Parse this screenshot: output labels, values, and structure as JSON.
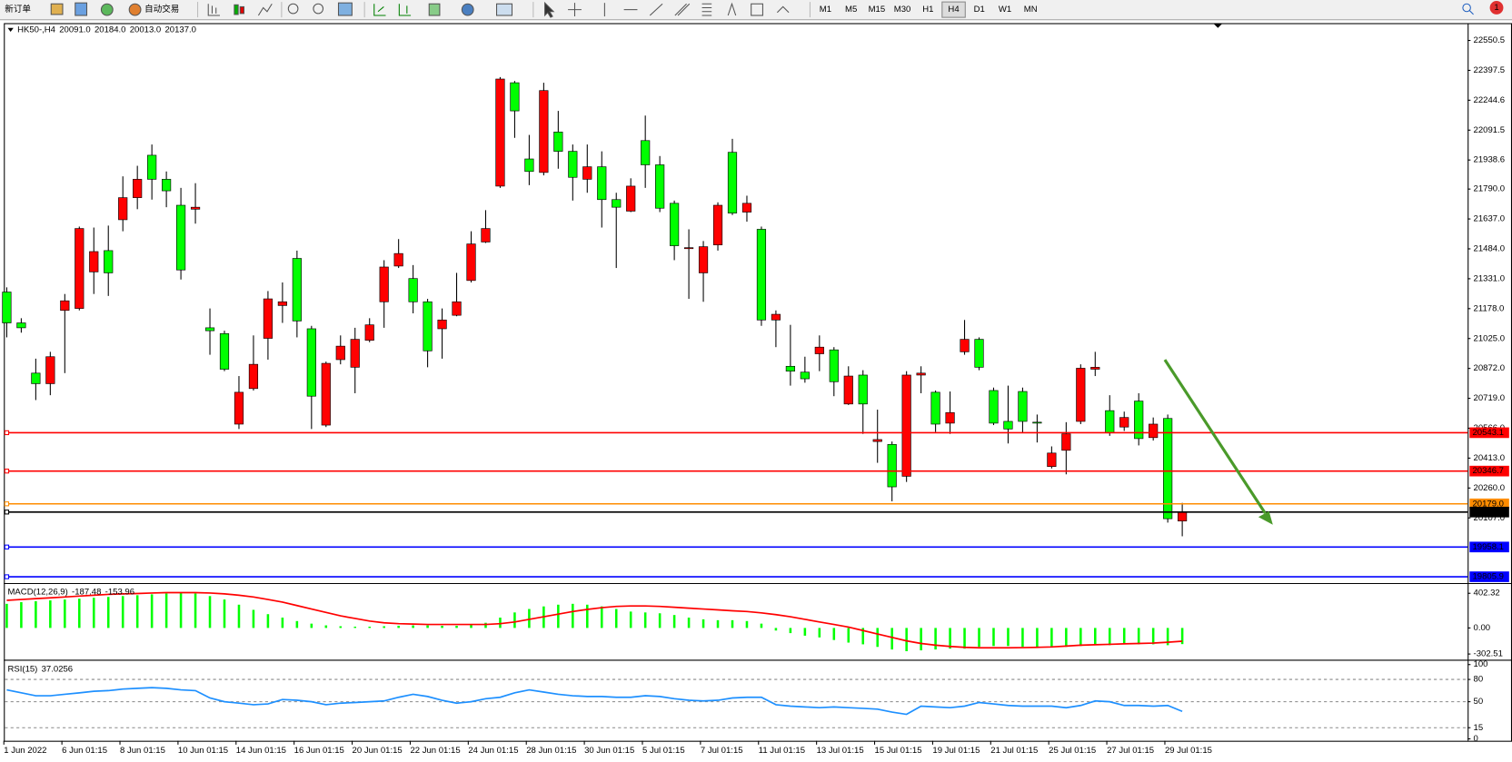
{
  "toolbar": {
    "new_order": "新订单",
    "auto_trading": "自动交易",
    "timeframes": [
      "M1",
      "M5",
      "M15",
      "M30",
      "H1",
      "H4",
      "D1",
      "W1",
      "MN"
    ],
    "badge": "1"
  },
  "chart_data": [
    {
      "type": "candlestick",
      "title": "HK50-,H4",
      "ohlc_labels": [
        "20091.0",
        "20184.0",
        "20013.0",
        "20137.0"
      ],
      "up_color": "#ff0000",
      "down_color": "#00ff00",
      "categories": [
        "1 Jun 2022",
        null,
        null,
        null,
        "6 Jun 01:15",
        null,
        null,
        null,
        "8 Jun 01:15",
        null,
        null,
        null,
        "10 Jun 01:15",
        null,
        null,
        null,
        "14 Jun 01:15",
        null,
        null,
        null,
        "16 Jun 01:15",
        null,
        null,
        null,
        "20 Jun 01:15",
        null,
        null,
        null,
        "22 Jun 01:15",
        null,
        null,
        null,
        "24 Jun 01:15",
        null,
        null,
        null,
        "28 Jun 01:15",
        null,
        null,
        null,
        "30 Jun 01:15",
        null,
        null,
        null,
        "5 Jul 01:15",
        null,
        null,
        null,
        "7 Jul 01:15",
        null,
        null,
        null,
        "11 Jul 01:15",
        null,
        null,
        null,
        "13 Jul 01:15",
        null,
        null,
        null,
        "15 Jul 01:15",
        null,
        null,
        null,
        "19 Jul 01:15",
        null,
        null,
        null,
        "21 Jul 01:15",
        null,
        null,
        null,
        "25 Jul 01:15",
        null,
        null,
        null,
        "27 Jul 01:15",
        null,
        null,
        null,
        "29 Jul 01:15",
        null
      ],
      "open": [
        21263,
        21105,
        20848,
        20794,
        21169,
        21179,
        21366,
        21475,
        21633,
        21746,
        21963,
        21840,
        21707,
        21687,
        21080,
        21050,
        20587,
        20769,
        21026,
        21194,
        21435,
        21075,
        20582,
        20917,
        20878,
        21016,
        21213,
        21396,
        21332,
        21213,
        21075,
        21144,
        21322,
        21519,
        21805,
        22334,
        21944,
        21875,
        22082,
        21983,
        21840,
        21904,
        21736,
        21677,
        22038,
        21914,
        21717,
        21485,
        21361,
        21504,
        21978,
        21672,
        21584,
        21120,
        20883,
        20853,
        20947,
        20967,
        20690,
        20838,
        20498,
        20483,
        20320,
        20838,
        20750,
        20592,
        20957,
        21021,
        20759,
        20601,
        20754,
        20597,
        20370,
        20453,
        20601,
        20868,
        20656,
        20572,
        20705,
        20518,
        20616,
        20091
      ],
      "high": [
        21287,
        21129,
        20922,
        20957,
        21253,
        21598,
        21593,
        21603,
        21855,
        21909,
        22018,
        21880,
        21796,
        21820,
        21179,
        21065,
        20833,
        21041,
        21268,
        21312,
        21475,
        21090,
        20907,
        21041,
        21080,
        21129,
        21426,
        21534,
        21401,
        21228,
        21179,
        21361,
        21574,
        21682,
        22363,
        22343,
        22067,
        22334,
        22190,
        22018,
        22018,
        21983,
        21771,
        21845,
        22166,
        21959,
        21731,
        21584,
        21524,
        21722,
        22047,
        21756,
        21598,
        21169,
        21095,
        20932,
        21041,
        20981,
        20883,
        20863,
        20661,
        20498,
        20858,
        20883,
        20759,
        20754,
        21120,
        21031,
        20774,
        20784,
        20774,
        20636,
        20473,
        20597,
        20893,
        20957,
        20735,
        20651,
        20745,
        20621,
        20636,
        20184
      ],
      "low": [
        21031,
        21055,
        20710,
        20735,
        20848,
        21169,
        21253,
        21243,
        21574,
        21687,
        21736,
        21697,
        21327,
        21613,
        20942,
        20858,
        20562,
        20759,
        20917,
        21105,
        21031,
        20562,
        20572,
        20893,
        20745,
        21006,
        21080,
        21386,
        21154,
        20878,
        20922,
        21139,
        21312,
        21514,
        21796,
        22052,
        21810,
        21860,
        21894,
        21731,
        21771,
        21593,
        21386,
        21672,
        21796,
        21672,
        21426,
        21228,
        21213,
        21475,
        21657,
        21623,
        21090,
        20981,
        20784,
        20799,
        20858,
        20730,
        20685,
        20537,
        20389,
        20192,
        20291,
        20745,
        20547,
        20537,
        20942,
        20863,
        20582,
        20488,
        20542,
        20493,
        20360,
        20330,
        20587,
        20833,
        20527,
        20552,
        20478,
        20503,
        20083,
        20013
      ],
      "close": [
        21105,
        21080,
        20794,
        20932,
        21218,
        21588,
        21470,
        21361,
        21746,
        21840,
        21840,
        21781,
        21376,
        21697,
        21065,
        20868,
        20750,
        20893,
        21228,
        21213,
        21115,
        20730,
        20898,
        20986,
        21021,
        21095,
        21391,
        21460,
        21213,
        20962,
        21120,
        21213,
        21509,
        21588,
        22353,
        22190,
        21880,
        22294,
        21983,
        21850,
        21904,
        21736,
        21697,
        21805,
        21914,
        21692,
        21500,
        21490,
        21495,
        21707,
        21667,
        21717,
        21120,
        21149,
        20858,
        20819,
        20981,
        20804,
        20833,
        20690,
        20508,
        20266,
        20838,
        20848,
        20587,
        20646,
        21021,
        20878,
        20592,
        20562,
        20601,
        20592,
        20439,
        20537,
        20873,
        20878,
        20542,
        20621,
        20513,
        20587,
        20103,
        20137
      ],
      "ylim": [
        19776,
        22639
      ],
      "yticks": [
        {
          "value": 22550.5,
          "label": "22550.5"
        },
        {
          "value": 22397.5,
          "label": "22397.5"
        },
        {
          "value": 22244.6,
          "label": "22244.6"
        },
        {
          "value": 22091.5,
          "label": "22091.5"
        },
        {
          "value": 21938.6,
          "label": "21938.6"
        },
        {
          "value": 21790,
          "label": "21790.0"
        },
        {
          "value": 21637,
          "label": "21637.0"
        },
        {
          "value": 21484,
          "label": "21484.0"
        },
        {
          "value": 21331,
          "label": "21331.0"
        },
        {
          "value": 21178,
          "label": "21178.0"
        },
        {
          "value": 21025,
          "label": "21025.0"
        },
        {
          "value": 20872,
          "label": "20872.0"
        },
        {
          "value": 20719,
          "label": "20719.0"
        },
        {
          "value": 20566,
          "label": "20566.0"
        },
        {
          "value": 20413,
          "label": "20413.0"
        },
        {
          "value": 20260,
          "label": "20260.0"
        },
        {
          "value": 20107,
          "label": "20107.0"
        }
      ],
      "levels": [
        {
          "value": 20543.1,
          "label": "20543.1",
          "color": "#ff0000"
        },
        {
          "value": 20346.7,
          "label": "20346.7",
          "color": "#ff0000"
        },
        {
          "value": 20179,
          "label": "20179.0",
          "color": "#ff8c00"
        },
        {
          "value": 20137,
          "label": "20137.0",
          "color": "#000000"
        },
        {
          "value": 19958.1,
          "label": "19958.1",
          "color": "#0000ff"
        },
        {
          "value": 19805.9,
          "label": "19805.9",
          "color": "#0000ff"
        }
      ]
    },
    {
      "type": "macd",
      "title": "MACD(12,26,9)",
      "value_labels": [
        "-187.48",
        "-153.96"
      ],
      "ylim": [
        -358,
        504
      ],
      "yticks": [
        {
          "value": 402.32,
          "label": "402.32"
        },
        {
          "value": 0,
          "label": "0.00"
        },
        {
          "value": -302.51,
          "label": "-302.51"
        }
      ],
      "series": [
        {
          "kind": "bar",
          "color": "#00ff00",
          "values": [
            280,
            300,
            310,
            320,
            330,
            340,
            350,
            360,
            370,
            380,
            390,
            400,
            405,
            400,
            370,
            330,
            270,
            210,
            160,
            120,
            80,
            50,
            30,
            20,
            15,
            15,
            20,
            25,
            30,
            30,
            25,
            25,
            40,
            60,
            120,
            180,
            220,
            250,
            270,
            280,
            270,
            250,
            220,
            190,
            180,
            170,
            150,
            120,
            100,
            90,
            90,
            80,
            50,
            -30,
            -60,
            -90,
            -110,
            -140,
            -170,
            -190,
            -220,
            -250,
            -270,
            -260,
            -250,
            -240,
            -240,
            -220,
            -210,
            -210,
            -220,
            -220,
            -220,
            -220,
            -210,
            -200,
            -200,
            -190,
            -190,
            -190,
            -200,
            -187.48
          ]
        },
        {
          "kind": "line",
          "color": "#ff0000",
          "values": [
            320,
            330,
            340,
            350,
            360,
            370,
            380,
            390,
            395,
            400,
            405,
            410,
            410,
            410,
            405,
            395,
            380,
            360,
            330,
            300,
            260,
            220,
            180,
            140,
            110,
            80,
            60,
            50,
            45,
            40,
            40,
            40,
            40,
            40,
            50,
            70,
            100,
            130,
            160,
            190,
            215,
            235,
            250,
            255,
            255,
            250,
            240,
            230,
            220,
            210,
            200,
            190,
            175,
            155,
            130,
            100,
            70,
            40,
            10,
            -30,
            -70,
            -110,
            -150,
            -180,
            -200,
            -215,
            -225,
            -230,
            -230,
            -230,
            -228,
            -225,
            -220,
            -210,
            -200,
            -195,
            -190,
            -185,
            -180,
            -175,
            -165,
            -153.96
          ]
        }
      ]
    },
    {
      "type": "line",
      "title": "RSI(15)",
      "value_labels": [
        "37.0256"
      ],
      "ylim": [
        0,
        100
      ],
      "yticks": [
        100,
        80,
        50,
        15,
        0
      ],
      "dashed_levels": [
        80,
        50,
        15
      ],
      "series": [
        {
          "color": "#1e90ff",
          "values": [
            66,
            62,
            58,
            58,
            60,
            62,
            64,
            65,
            67,
            68,
            69,
            68,
            66,
            65,
            55,
            50,
            48,
            46,
            47,
            53,
            52,
            50,
            46,
            48,
            49,
            50,
            51,
            56,
            60,
            57,
            52,
            48,
            50,
            54,
            56,
            62,
            66,
            63,
            60,
            58,
            57,
            57,
            56,
            56,
            58,
            57,
            54,
            52,
            51,
            52,
            55,
            56,
            56,
            46,
            44,
            43,
            42,
            43,
            42,
            41,
            40,
            36,
            33,
            44,
            43,
            42,
            44,
            49,
            47,
            45,
            44,
            44,
            44,
            42,
            45,
            51,
            50,
            45,
            45,
            44,
            45,
            37.0256
          ]
        }
      ]
    }
  ]
}
